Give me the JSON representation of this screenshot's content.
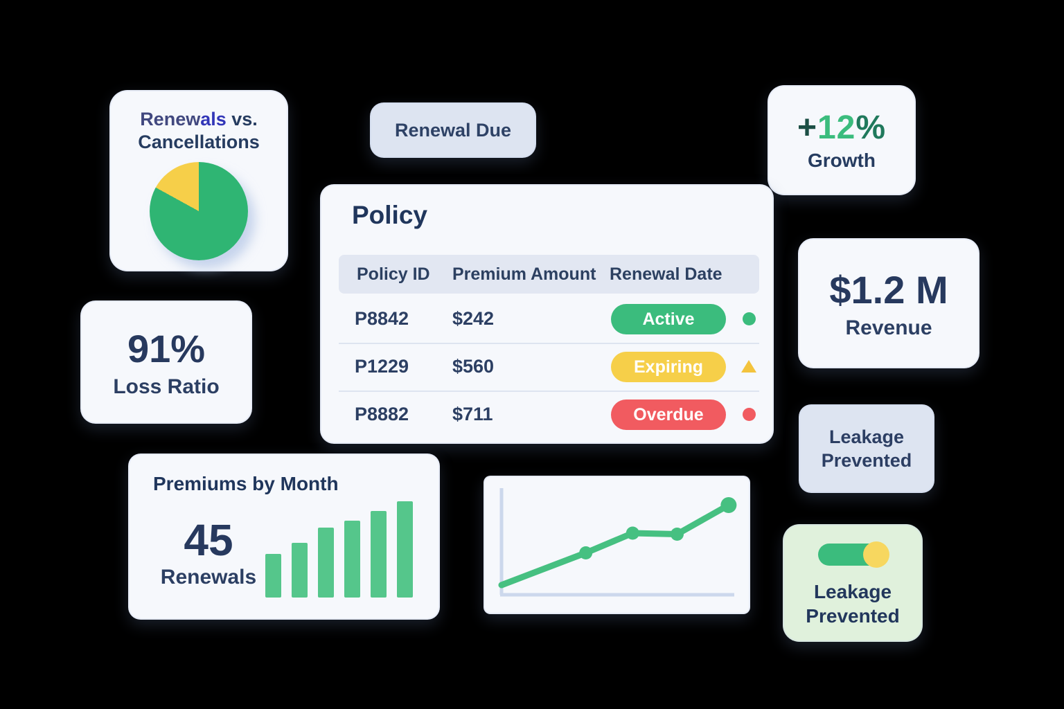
{
  "colors": {
    "canvas-bg": "#000000",
    "card-bg": "#f6f8fc",
    "badge-bg": "#dde4f1",
    "header-band-bg": "#e2e7f2",
    "navy": "#263c60",
    "navy-dark": "#20365c",
    "green": "#3bbc7d",
    "green-bar": "#55c68b",
    "green-line": "#46c081",
    "green-pie": "#2fb573",
    "yellow": "#f6cf49",
    "red": "#f15b60",
    "axis": "#ccd8ec",
    "divider": "#dde4f0",
    "indigo": "#3236b8",
    "slate-blue": "#41487f",
    "teal-dark": "#1c4f45",
    "green-dark": "#20795c",
    "green-card-bg": "#e0f1dc",
    "toggle-knob": "#f7d75f"
  },
  "cards": {
    "renewals_pie": {
      "title_seg1": "Renew",
      "title_seg2": "als",
      "title_seg3": " vs.",
      "title_line2": "Cancellations"
    },
    "renewal_due_chip": {
      "label": "Renewal Due"
    },
    "growth": {
      "plus": "+",
      "number": "12",
      "percent": "%",
      "label": "Growth"
    },
    "policy": {
      "title": "Policy",
      "columns": [
        "Policy ID",
        "Premium Amount",
        "Renewal Date"
      ],
      "rows": [
        {
          "id": "P8842",
          "amount": "$242",
          "status": "Active",
          "status_color": "#3bbc7d",
          "indicator": "dot",
          "indicator_color": "#3bbc7d"
        },
        {
          "id": "P1229",
          "amount": "$560",
          "status": "Expiring",
          "status_color": "#f6cf49",
          "indicator": "triangle",
          "indicator_color": "#f3c33d"
        },
        {
          "id": "P8882",
          "amount": "$711",
          "status": "Overdue",
          "status_color": "#f15b60",
          "indicator": "dot",
          "indicator_color": "#f15b60"
        }
      ]
    },
    "loss_ratio": {
      "value": "91%",
      "label": "Loss Ratio"
    },
    "revenue": {
      "value": "$1.2 M",
      "label": "Revenue"
    },
    "leakage_badge": {
      "line1": "Leakage",
      "line2": "Prevented"
    },
    "premiums": {
      "title": "Premiums by Month",
      "value": "45",
      "label": "Renewals"
    },
    "leakage_card": {
      "line1": "Leakage",
      "line2": "Prevented",
      "toggle_state": "on"
    }
  },
  "chart_data": [
    {
      "type": "pie",
      "title": "Renewals vs. Cancellations",
      "labels": [
        "Renewals",
        "Cancellations"
      ],
      "values": [
        83,
        17
      ],
      "colors": [
        "#2fb573",
        "#f6cf49"
      ],
      "legend_position": "none",
      "note": "yellow slice spans ~60deg counterclockwise from 12 o'clock"
    },
    {
      "type": "bar",
      "title": "Premiums by Month",
      "categories": [
        "",
        "",
        "",
        "",
        "",
        ""
      ],
      "values": [
        45,
        57,
        73,
        80,
        90,
        100
      ],
      "xlabel": "",
      "ylabel": "",
      "ylim": [
        0,
        100
      ],
      "grid": false,
      "color": "#55c68b",
      "note": "6 unlabeled ascending bars"
    },
    {
      "type": "line",
      "title": "",
      "x": [
        0,
        36,
        56,
        75,
        97
      ],
      "y": [
        8,
        39,
        58,
        57,
        85
      ],
      "xlabel": "",
      "ylabel": "",
      "xlim": [
        0,
        100
      ],
      "ylim": [
        0,
        100
      ],
      "grid": false,
      "color": "#46c081",
      "markers_at": [
        1,
        2,
        3,
        4
      ],
      "note": "plain L-shaped unlabeled axes, rising green line with dots"
    }
  ]
}
